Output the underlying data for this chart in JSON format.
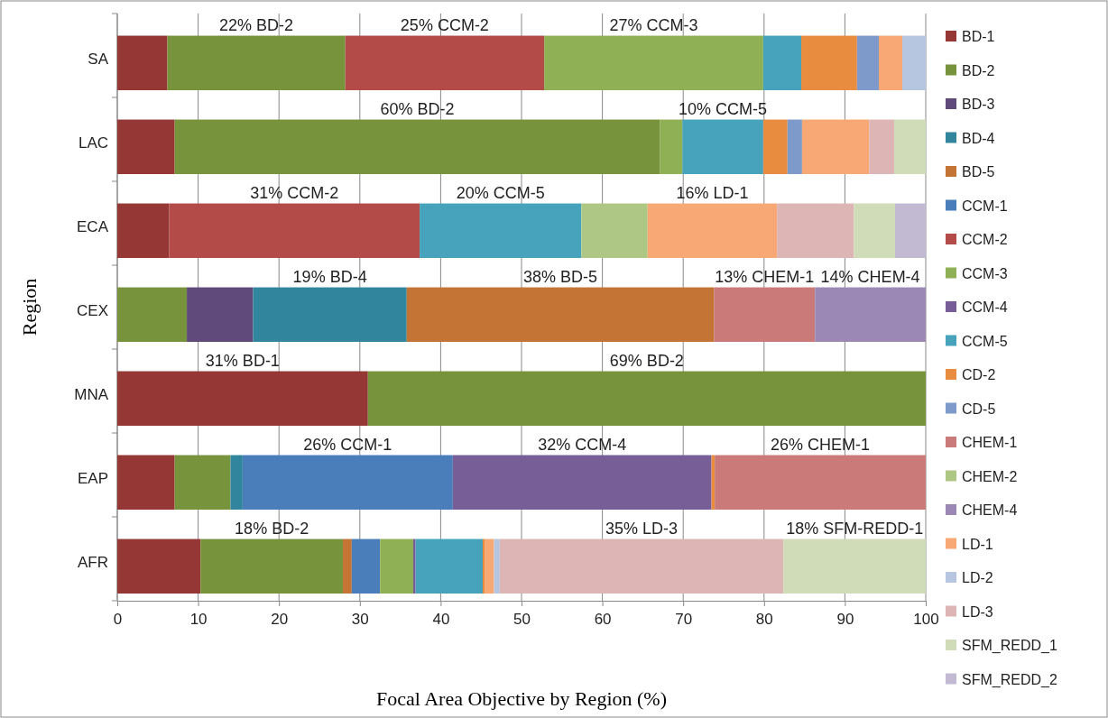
{
  "chart_data": {
    "type": "bar",
    "orientation": "horizontal",
    "stacked": true,
    "xlabel": "Focal Area Objective by Region (%)",
    "ylabel": "Region",
    "categories": [
      "SA",
      "LAC",
      "ECA",
      "CEX",
      "MNA",
      "EAP",
      "AFR"
    ],
    "xlim": [
      0,
      100
    ],
    "xticks": [
      0,
      10,
      20,
      30,
      40,
      50,
      60,
      70,
      80,
      90,
      100
    ],
    "grid": "x",
    "legend": "right",
    "series": [
      {
        "name": "BD-1",
        "color": "#953735",
        "values": [
          6.2,
          7.1,
          6.4,
          null,
          31,
          7.1,
          10.3
        ],
        "value_labels": [
          null,
          null,
          null,
          null,
          "31% BD-1",
          null,
          null
        ]
      },
      {
        "name": "BD-2",
        "color": "#77933c",
        "values": [
          22,
          60,
          null,
          8.6,
          69,
          6.9,
          17.6
        ],
        "value_labels": [
          "22% BD-2",
          "60% BD-2",
          null,
          null,
          "69% BD-2",
          null,
          "18% BD-2"
        ]
      },
      {
        "name": "BD-3",
        "color": "#604a7b",
        "values": [
          null,
          null,
          null,
          8.2,
          null,
          null,
          null
        ]
      },
      {
        "name": "BD-4",
        "color": "#31859c",
        "values": [
          null,
          null,
          null,
          19,
          null,
          1.5,
          null
        ],
        "value_labels": [
          null,
          null,
          null,
          "19% BD-4",
          null,
          null,
          null
        ]
      },
      {
        "name": "BD-5",
        "color": "#c47434",
        "values": [
          null,
          null,
          null,
          38,
          null,
          null,
          1.1
        ],
        "value_labels": [
          null,
          null,
          null,
          "38% BD-5",
          null,
          null,
          null
        ]
      },
      {
        "name": "CCM-1",
        "color": "#4a7ebb",
        "values": [
          null,
          null,
          null,
          null,
          null,
          26,
          3.5
        ],
        "value_labels": [
          null,
          null,
          null,
          null,
          null,
          "26% CCM-1",
          null
        ]
      },
      {
        "name": "CCM-2",
        "color": "#b34b49",
        "values": [
          24.6,
          null,
          31,
          null,
          null,
          null,
          null
        ],
        "value_labels": [
          "25% CCM-2",
          null,
          "31% CCM-2",
          null,
          null,
          null,
          null
        ]
      },
      {
        "name": "CCM-3",
        "color": "#8fb054",
        "values": [
          27.1,
          2.8,
          null,
          null,
          null,
          null,
          4.1
        ],
        "value_labels": [
          "27% CCM-3",
          null,
          null,
          null,
          null,
          null,
          null
        ]
      },
      {
        "name": "CCM-4",
        "color": "#775e96",
        "values": [
          null,
          null,
          null,
          null,
          null,
          32,
          0.3
        ],
        "value_labels": [
          null,
          null,
          null,
          null,
          null,
          "32% CCM-4",
          null
        ]
      },
      {
        "name": "CCM-5",
        "color": "#46a3bb",
        "values": [
          4.7,
          10,
          20,
          null,
          null,
          null,
          8.3
        ],
        "value_labels": [
          null,
          "10% CCM-5",
          "20% CCM-5",
          null,
          null,
          null,
          null
        ]
      },
      {
        "name": "CD-2",
        "color": "#e88d3f",
        "values": [
          6.9,
          3,
          null,
          null,
          null,
          0.4,
          0.3
        ]
      },
      {
        "name": "CD-5",
        "color": "#7d9acb",
        "values": [
          2.7,
          1.8,
          null,
          null,
          null,
          null,
          null
        ]
      },
      {
        "name": "CHEM-1",
        "color": "#ca7b79",
        "values": [
          null,
          null,
          null,
          12.5,
          null,
          26.1,
          null
        ],
        "value_labels": [
          null,
          null,
          null,
          "13% CHEM-1",
          null,
          "26% CHEM-1",
          null
        ]
      },
      {
        "name": "CHEM-2",
        "color": "#afc785",
        "values": [
          null,
          null,
          8.2,
          null,
          null,
          null,
          null
        ]
      },
      {
        "name": "CHEM-4",
        "color": "#9b88b4",
        "values": [
          null,
          null,
          null,
          13.7,
          null,
          null,
          null
        ],
        "value_labels": [
          null,
          null,
          null,
          "14% CHEM-4",
          null,
          null,
          null
        ]
      },
      {
        "name": "LD-1",
        "color": "#f7a874",
        "values": [
          2.9,
          8.3,
          16,
          null,
          null,
          null,
          1.1
        ],
        "value_labels": [
          null,
          null,
          "16% LD-1",
          null,
          null,
          null,
          null
        ]
      },
      {
        "name": "LD-2",
        "color": "#b6c5e0",
        "values": [
          2.9,
          null,
          null,
          null,
          null,
          null,
          0.7
        ]
      },
      {
        "name": "LD-3",
        "color": "#ddb5b4",
        "values": [
          null,
          3.1,
          9.5,
          null,
          null,
          null,
          35.1
        ],
        "value_labels": [
          null,
          null,
          null,
          null,
          null,
          null,
          "35% LD-3"
        ]
      },
      {
        "name": "SFM_REDD_1",
        "color": "#cfdcb7",
        "values": [
          null,
          3.9,
          5.1,
          null,
          null,
          null,
          17.6
        ],
        "value_labels": [
          null,
          null,
          null,
          null,
          null,
          null,
          "18% SFM-REDD-1"
        ]
      },
      {
        "name": "SFM_REDD_2",
        "color": "#c2b9d3",
        "values": [
          null,
          null,
          3.8,
          null,
          null,
          null,
          null
        ]
      }
    ]
  }
}
